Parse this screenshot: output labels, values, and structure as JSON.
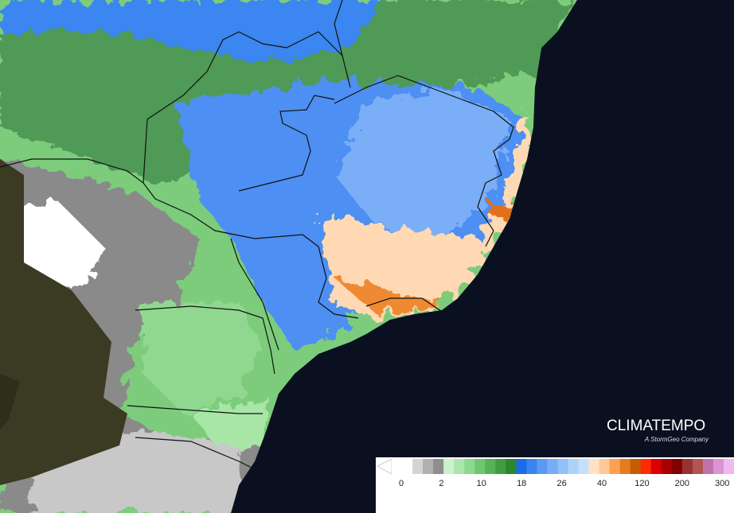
{
  "logo": {
    "title": "CLIMATEMPO",
    "subtitle": "A StormGeo Company"
  },
  "legend": {
    "ticks": [
      "0",
      "2",
      "10",
      "18",
      "26",
      "40",
      "120",
      "200",
      "300"
    ],
    "colors": [
      "#ffffff",
      "#ffffff",
      "#d4d4d4",
      "#b0b0b0",
      "#8e8e8e",
      "#ccf2cc",
      "#ace6ac",
      "#8ed88e",
      "#70c670",
      "#56b256",
      "#409c40",
      "#2c862c",
      "#1c6ce6",
      "#3a84f0",
      "#5a9af4",
      "#76aef6",
      "#92c0f8",
      "#acd2fa",
      "#c4e0fc",
      "#ffe2c6",
      "#ffc896",
      "#ffa050",
      "#e47c20",
      "#c85c00",
      "#ff2a00",
      "#d80000",
      "#a80000",
      "#820000",
      "#983232",
      "#b05454",
      "#c272a8",
      "#da94d6",
      "#f2b6f2"
    ]
  }
}
